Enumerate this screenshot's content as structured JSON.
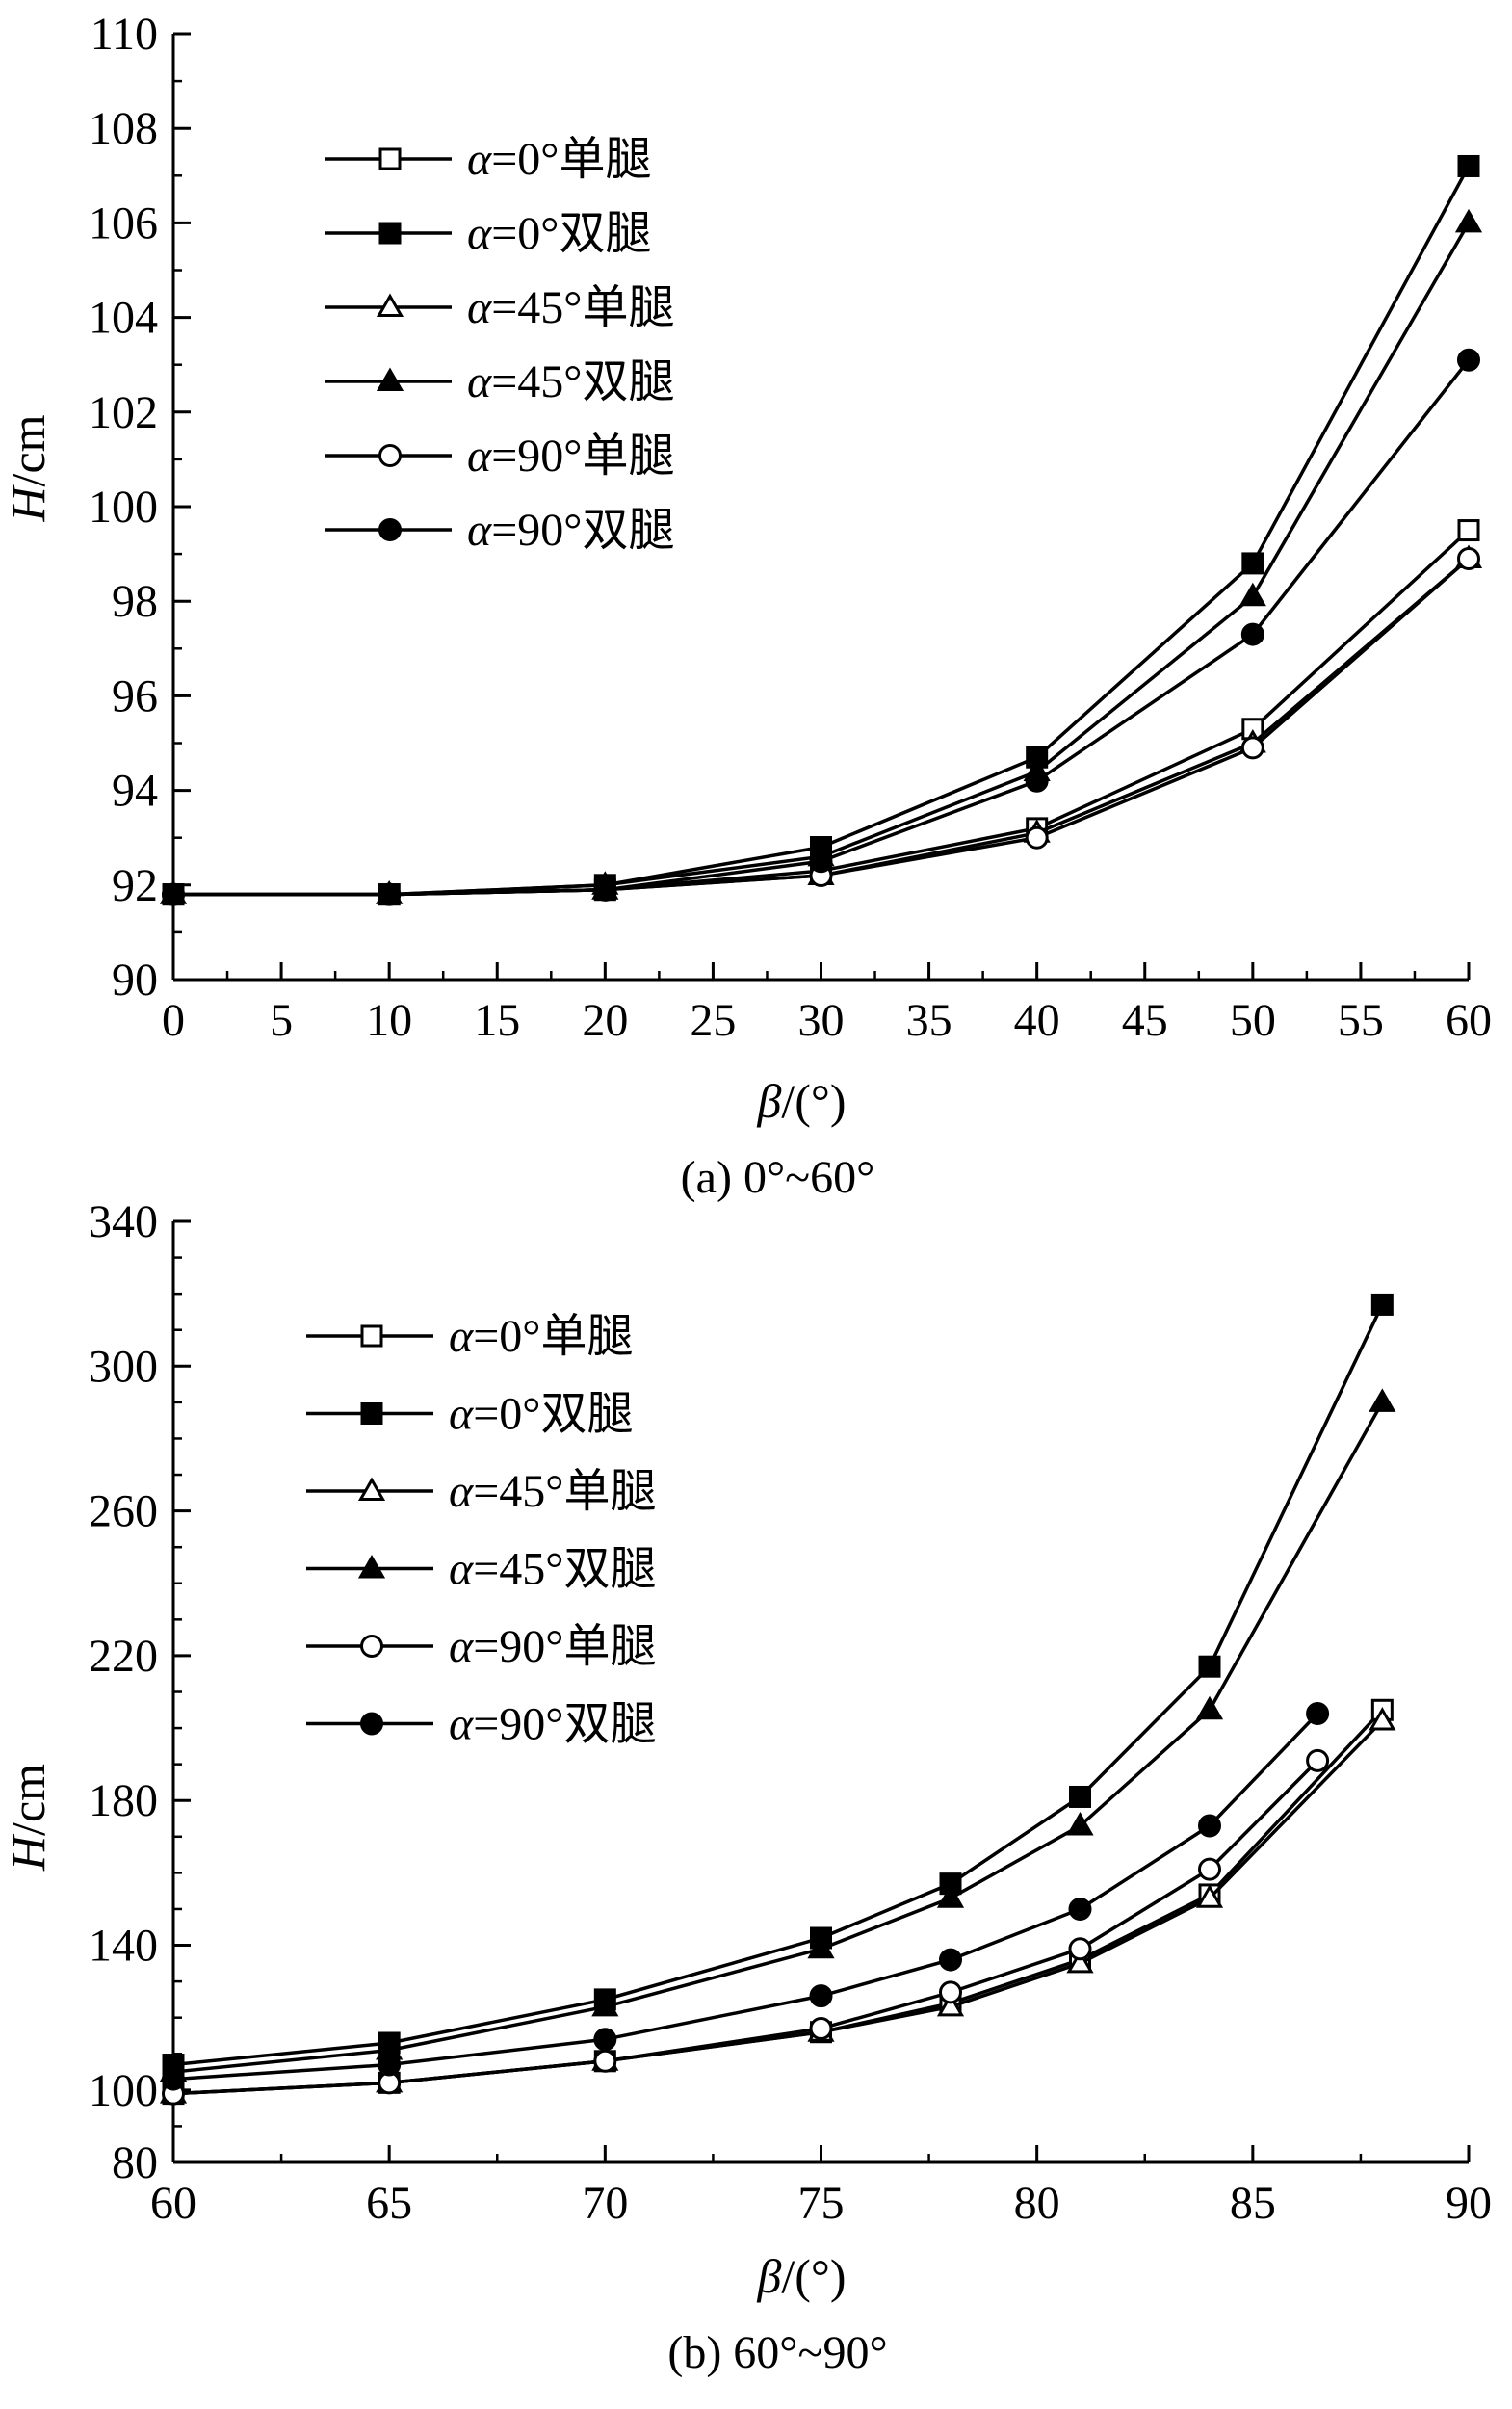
{
  "chart_data": [
    {
      "type": "line",
      "caption": "(a) 0°~60°",
      "xlabel_var": "β",
      "xlabel_unit": "/(°)",
      "ylabel_var": "H",
      "ylabel_unit": "/cm",
      "xlim": [
        0,
        60
      ],
      "ylim": [
        90,
        110
      ],
      "xticks": [
        0,
        5,
        10,
        15,
        20,
        25,
        30,
        35,
        40,
        45,
        50,
        55,
        60
      ],
      "yticks": [
        90,
        92,
        94,
        96,
        98,
        100,
        102,
        104,
        106,
        108,
        110
      ],
      "grid": false,
      "legend_position": "top-left",
      "series": [
        {
          "name": "α=0°单腿",
          "marker": "square-open",
          "x": [
            0,
            10,
            20,
            30,
            40,
            50,
            60
          ],
          "y": [
            91.8,
            91.8,
            91.9,
            92.3,
            93.2,
            95.3,
            99.5
          ]
        },
        {
          "name": "α=0°双腿",
          "marker": "square-filled",
          "x": [
            0,
            10,
            20,
            30,
            40,
            50,
            60
          ],
          "y": [
            91.8,
            91.8,
            92.0,
            92.8,
            94.7,
            98.8,
            107.2
          ]
        },
        {
          "name": "α=45°单腿",
          "marker": "triangle-open",
          "x": [
            0,
            10,
            20,
            30,
            40,
            50,
            60
          ],
          "y": [
            91.8,
            91.8,
            91.9,
            92.2,
            93.1,
            95.0,
            98.9
          ]
        },
        {
          "name": "α=45°双腿",
          "marker": "triangle-filled",
          "x": [
            0,
            10,
            20,
            30,
            40,
            50,
            60
          ],
          "y": [
            91.8,
            91.8,
            92.0,
            92.6,
            94.4,
            98.1,
            106.0
          ]
        },
        {
          "name": "α=90°单腿",
          "marker": "circle-open",
          "x": [
            0,
            10,
            20,
            30,
            40,
            50,
            60
          ],
          "y": [
            91.8,
            91.8,
            91.9,
            92.2,
            93.0,
            94.9,
            98.9
          ]
        },
        {
          "name": "α=90°双腿",
          "marker": "circle-filled",
          "x": [
            0,
            10,
            20,
            30,
            40,
            50,
            60
          ],
          "y": [
            91.8,
            91.8,
            91.9,
            92.5,
            94.2,
            97.3,
            103.1
          ]
        }
      ]
    },
    {
      "type": "line",
      "caption": "(b) 60°~90°",
      "xlabel_var": "β",
      "xlabel_unit": "/(°)",
      "ylabel_var": "H",
      "ylabel_unit": "/cm",
      "xlim": [
        60,
        90
      ],
      "ylim": [
        80,
        340
      ],
      "xticks": [
        60,
        65,
        70,
        75,
        80,
        85,
        90
      ],
      "yticks": [
        80,
        100,
        140,
        180,
        220,
        260,
        300,
        340
      ],
      "grid": false,
      "legend_position": "top-left",
      "series": [
        {
          "name": "α=0°单腿",
          "marker": "square-open",
          "x": [
            60,
            65,
            70,
            75,
            78,
            81,
            84,
            88
          ],
          "y": [
            99,
            102,
            108,
            116,
            124,
            136,
            154,
            205
          ]
        },
        {
          "name": "α=0°双腿",
          "marker": "square-filled",
          "x": [
            60,
            65,
            70,
            75,
            78,
            81,
            84,
            88
          ],
          "y": [
            107,
            113,
            125,
            142,
            157,
            181,
            217,
            317
          ]
        },
        {
          "name": "α=45°单腿",
          "marker": "triangle-open",
          "x": [
            60,
            65,
            70,
            75,
            78,
            81,
            84,
            88
          ],
          "y": [
            99,
            102,
            108,
            116,
            123,
            135,
            153,
            202
          ]
        },
        {
          "name": "α=45°双腿",
          "marker": "triangle-filled",
          "x": [
            60,
            65,
            70,
            75,
            78,
            81,
            84,
            88
          ],
          "y": [
            105,
            111,
            123,
            139,
            153,
            173,
            205,
            290
          ]
        },
        {
          "name": "α=90°单腿",
          "marker": "circle-open",
          "x": [
            60,
            65,
            70,
            75,
            78,
            81,
            84,
            86.5
          ],
          "y": [
            99,
            102,
            108,
            117,
            127,
            139,
            161,
            191
          ]
        },
        {
          "name": "α=90°双腿",
          "marker": "circle-filled",
          "x": [
            60,
            65,
            70,
            75,
            78,
            81,
            84,
            86.5
          ],
          "y": [
            103,
            107,
            114,
            126,
            136,
            150,
            173,
            204
          ]
        }
      ]
    }
  ]
}
